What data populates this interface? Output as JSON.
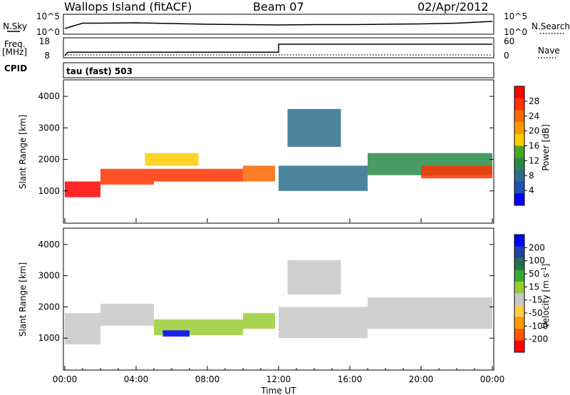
{
  "header": {
    "station": "Wallops Island (fitACF)",
    "beam": "Beam 07",
    "date": "02/Apr/2012"
  },
  "noise_panel": {
    "left_label": "N.Sky",
    "left_ticks": [
      "10^5",
      "10^0"
    ],
    "right_label": "N.Search",
    "right_ticks": [
      "10^5",
      "10^0"
    ]
  },
  "freq_panel": {
    "left_label_line1": "Freq.",
    "left_label_line2": "[MHz]",
    "left_ticks": [
      "18",
      "8"
    ],
    "right_label": "Nave",
    "right_ticks": [
      "60",
      "0"
    ]
  },
  "cpid": {
    "label": "CPID",
    "value": "tau (fast) 503"
  },
  "x_axis": {
    "label": "Time UT",
    "ticks": [
      "00:00",
      "04:00",
      "08:00",
      "12:00",
      "16:00",
      "20:00",
      "00:00"
    ]
  },
  "colors": {
    "power": [
      "#0000ff",
      "#2050b0",
      "#2e6e8c",
      "#2a8a4a",
      "#44aa22",
      "#ffcc00",
      "#ff9900",
      "#ff6600",
      "#ff3300",
      "#ff0000"
    ],
    "velocity": [
      "#ff0000",
      "#ff5500",
      "#ff9900",
      "#ffcc44",
      "#c8c8c8",
      "#99cc33",
      "#33aa33",
      "#2a6e4a",
      "#2244aa",
      "#0000ff"
    ]
  },
  "chart_data": [
    {
      "type": "line",
      "panel": "noise",
      "ylim": [
        0,
        5
      ],
      "log_scale": true,
      "x": [
        "00:00",
        "01:00",
        "02:00",
        "04:00",
        "06:00",
        "08:00",
        "10:00",
        "12:00",
        "14:00",
        "16:00",
        "18:00",
        "20:00",
        "22:00",
        "24:00"
      ],
      "values": [
        1.4,
        2.9,
        2.9,
        3.0,
        2.8,
        2.6,
        2.5,
        2.4,
        2.5,
        2.5,
        2.6,
        2.7,
        2.9,
        3.4
      ]
    },
    {
      "type": "line",
      "panel": "frequency",
      "ylim": [
        8,
        18
      ],
      "x": [
        "00:00",
        "00:10",
        "12:00",
        "12:00",
        "24:00"
      ],
      "values": [
        8.0,
        10.3,
        10.3,
        15.6,
        15.6
      ]
    },
    {
      "type": "heatmap",
      "panel": "power",
      "ylabel": "Slant Range [km]",
      "ylim": [
        0,
        4500
      ],
      "yticks": [
        1000,
        2000,
        3000,
        4000
      ],
      "xlim": [
        0,
        24
      ],
      "colorbar": {
        "label": "Power [dB]",
        "ticks": [
          4,
          8,
          12,
          16,
          20,
          24,
          28
        ]
      },
      "regions": [
        {
          "t": [
            0.0,
            2.0
          ],
          "range": [
            800,
            1300
          ],
          "level": 9
        },
        {
          "t": [
            2.0,
            5.0
          ],
          "range": [
            1200,
            1700
          ],
          "level": 8
        },
        {
          "t": [
            5.0,
            10.0
          ],
          "range": [
            1300,
            1700
          ],
          "level": 8
        },
        {
          "t": [
            4.5,
            7.5
          ],
          "range": [
            1800,
            2200
          ],
          "level": 5
        },
        {
          "t": [
            10.0,
            11.8
          ],
          "range": [
            1300,
            1800
          ],
          "level": 7
        },
        {
          "t": [
            12.0,
            17.0
          ],
          "range": [
            1000,
            1800
          ],
          "level": 2
        },
        {
          "t": [
            12.5,
            15.5
          ],
          "range": [
            2400,
            3600
          ],
          "level": 2
        },
        {
          "t": [
            17.0,
            24.0
          ],
          "range": [
            1500,
            2200
          ],
          "level": 3
        },
        {
          "t": [
            20.0,
            24.0
          ],
          "range": [
            1400,
            1800
          ],
          "level": 8
        }
      ]
    },
    {
      "type": "heatmap",
      "panel": "velocity",
      "ylabel": "Slant Range [km]",
      "ylim": [
        0,
        4500
      ],
      "yticks": [
        1000,
        2000,
        3000,
        4000
      ],
      "xlim": [
        0,
        24
      ],
      "colorbar": {
        "label": "Velocity [m s^-1]",
        "ticks": [
          -200,
          -100,
          -50,
          -15,
          15,
          50,
          100,
          200
        ]
      },
      "regions": [
        {
          "t": [
            0.0,
            2.0
          ],
          "range": [
            800,
            1800
          ],
          "level": 4
        },
        {
          "t": [
            2.0,
            5.0
          ],
          "range": [
            1400,
            2100
          ],
          "level": 4
        },
        {
          "t": [
            5.0,
            10.0
          ],
          "range": [
            1100,
            1600
          ],
          "level": 5
        },
        {
          "t": [
            5.5,
            7.0
          ],
          "range": [
            1050,
            1250
          ],
          "level": 9
        },
        {
          "t": [
            10.0,
            11.8
          ],
          "range": [
            1300,
            1800
          ],
          "level": 5
        },
        {
          "t": [
            12.0,
            17.0
          ],
          "range": [
            1000,
            2000
          ],
          "level": 4
        },
        {
          "t": [
            12.5,
            15.5
          ],
          "range": [
            2400,
            3500
          ],
          "level": 4
        },
        {
          "t": [
            17.0,
            24.0
          ],
          "range": [
            1300,
            2300
          ],
          "level": 4
        }
      ]
    }
  ]
}
